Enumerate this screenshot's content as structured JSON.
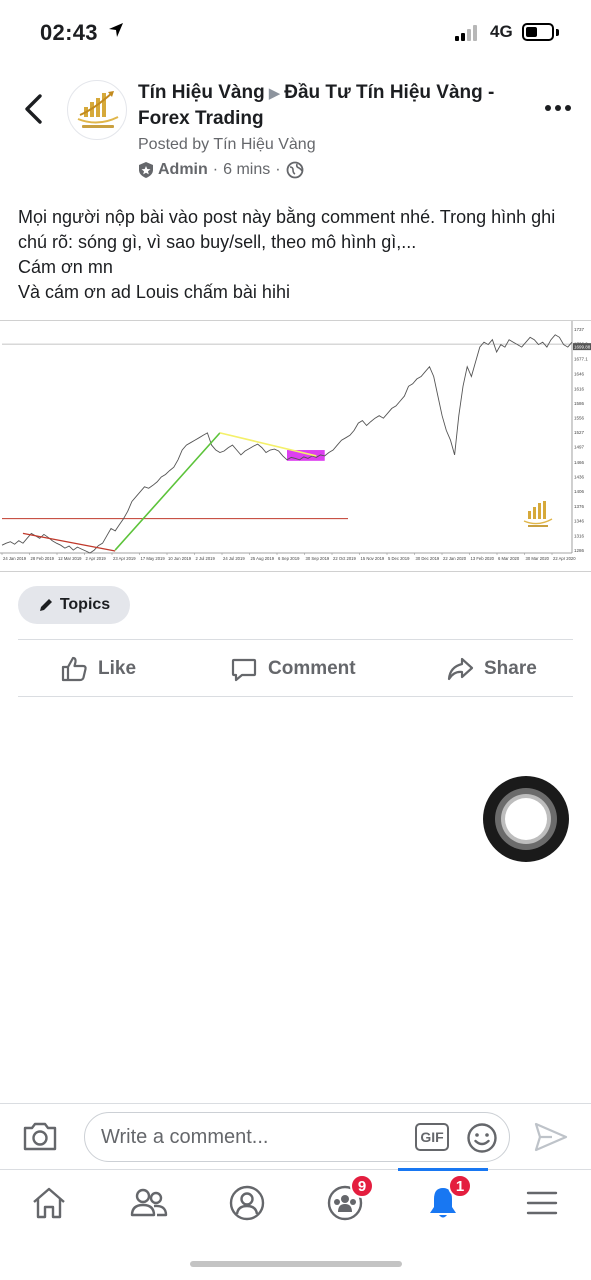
{
  "status_bar": {
    "time": "02:43",
    "network": "4G"
  },
  "post": {
    "group_name": "Tín Hiệu Vàng",
    "arrow": "▶",
    "target_group": "Đầu Tư Tín Hiệu Vàng - Forex Trading",
    "posted_by": "Posted by Tín Hiệu Vàng",
    "role": "Admin",
    "time_ago": "6 mins",
    "separator": "·",
    "text_lines": [
      "Mọi người nộp bài vào post này bằng comment nhé. Trong hình ghi chú rõ: sóng gì, vì sao buy/sell, theo mô hình gì,...",
      "Cám ơn mn",
      "Và cám ơn ad Louis chấm bài hihi"
    ]
  },
  "chart_data": {
    "type": "line",
    "title": "",
    "x_labels": [
      "24 Jan 2019",
      "28 Feb 2019",
      "12 Mar 2019",
      "2 Apr 2019",
      "23 Apr 2019",
      "17 May 2019",
      "10 Jun 2019",
      "2 Jul 2019",
      "24 Jul 2019",
      "25 Aug 2019",
      "6 Sep 2019",
      "30 Sep 2019",
      "22 Oct 2019",
      "15 Nov 2019",
      "5 Dec 2019",
      "30 Dec 2019",
      "22 Jan 2020",
      "13 Feb 2020",
      "6 Mar 2020",
      "30 Mar 2020",
      "22 Apr 2020"
    ],
    "y_labels": [
      1737,
      1706.9,
      1677.1,
      1646,
      1616,
      1586,
      1556,
      1527,
      1497,
      1466,
      1436,
      1406,
      1376,
      1346,
      1316,
      1286
    ],
    "ylim": [
      1280,
      1745
    ],
    "series": [
      {
        "values": [
          1296,
          1300,
          1303,
          1298,
          1305,
          1300,
          1310,
          1320,
          1315,
          1310,
          1318,
          1312,
          1305,
          1300,
          1296,
          1290,
          1294,
          1286,
          1292,
          1288,
          1284,
          1280,
          1286,
          1295,
          1300,
          1315,
          1330,
          1325,
          1338,
          1350,
          1365,
          1385,
          1395,
          1405,
          1415,
          1412,
          1418,
          1425,
          1435,
          1440,
          1448,
          1455,
          1470,
          1490,
          1500,
          1505,
          1510,
          1515,
          1520,
          1525,
          1500,
          1490,
          1485,
          1488,
          1495,
          1500,
          1490,
          1480,
          1488,
          1493,
          1498,
          1502,
          1495,
          1485,
          1490,
          1492,
          1488,
          1478,
          1470,
          1475,
          1473,
          1470,
          1476,
          1473,
          1478,
          1475,
          1480,
          1478,
          1485,
          1490,
          1500,
          1510,
          1515,
          1520,
          1530,
          1545,
          1550,
          1540,
          1548,
          1555,
          1560,
          1555,
          1565,
          1575,
          1580,
          1590,
          1600,
          1620,
          1625,
          1635,
          1640,
          1650,
          1660,
          1640,
          1600,
          1560,
          1530,
          1510,
          1480,
          1560,
          1620,
          1660,
          1640,
          1670,
          1700,
          1710,
          1705,
          1715,
          1690,
          1705,
          1700,
          1715,
          1710,
          1705,
          1700,
          1710,
          1720,
          1715,
          1705,
          1710,
          1700,
          1715,
          1725,
          1720,
          1705,
          1700,
          1710
        ]
      }
    ],
    "current_price_label": "1699.88"
  },
  "topics": {
    "label": "Topics"
  },
  "actions": {
    "like": "Like",
    "comment": "Comment",
    "share": "Share"
  },
  "comment_bar": {
    "placeholder": "Write a comment...",
    "gif_label": "GIF"
  },
  "tabs": {
    "groups_badge": "9",
    "notifications_badge": "1"
  },
  "colors": {
    "accent": "#1877f2",
    "badge": "#e41e3f",
    "secondary_text": "#65676b",
    "trend_red": "#c0392b",
    "trend_green": "#5cc33a",
    "trend_yellow": "#f4f06a",
    "zone_magenta": "#dd3ff0"
  }
}
